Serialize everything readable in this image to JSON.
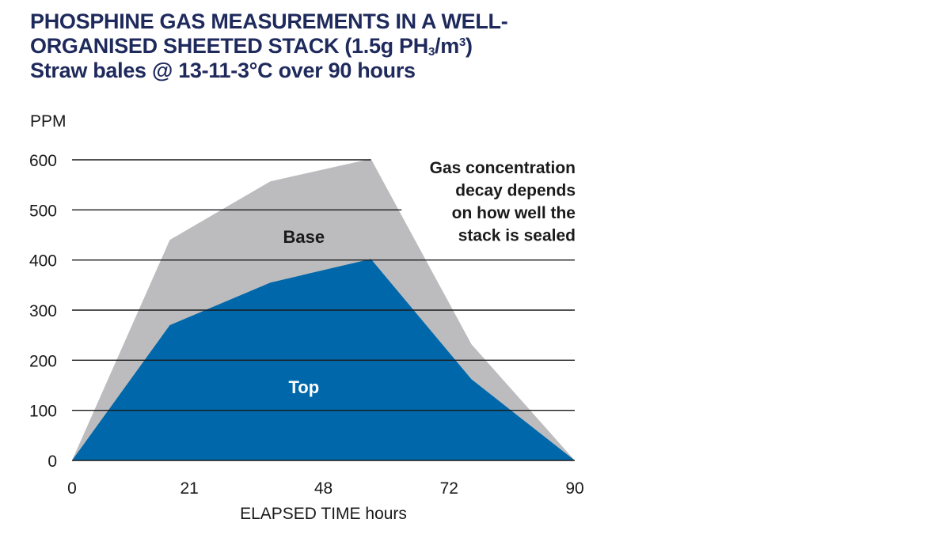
{
  "title": {
    "line1": "PHOSPHINE GAS MEASUREMENTS IN A WELL-",
    "line2_a": "ORGANISED SHEETED STACK (1.5g PH",
    "line2_sub": "3",
    "line2_b": "/m",
    "line2_sup": "3",
    "line2_c": ")",
    "line3": "Straw bales @ 13-11-3°C over 90 hours"
  },
  "colors": {
    "title": "#1f2a5c",
    "base_series": "#bcbcbf",
    "top_series": "#0068aa",
    "gridline": "#1a1a1a",
    "text": "#1a1a1a"
  },
  "chart_data": {
    "type": "area",
    "title": "PHOSPHINE GAS MEASUREMENTS IN A WELL-ORGANISED SHEETED STACK (1.5g PH3/m3) Straw bales @ 13-11-3°C over 90 hours",
    "ylabel": "PPM",
    "xlabel": "ELAPSED TIME hours",
    "xlim": [
      0,
      90
    ],
    "ylim": [
      0,
      600
    ],
    "x_ticks": [
      0,
      21,
      48,
      72,
      90
    ],
    "x_tick_positions": [
      0,
      21,
      45,
      67.5,
      90
    ],
    "y_ticks": [
      0,
      100,
      200,
      300,
      400,
      500,
      600
    ],
    "grid": true,
    "series": [
      {
        "name": "Base",
        "x": [
          0,
          17.5,
          35.5,
          53.5,
          71.5,
          90
        ],
        "values": [
          0,
          440,
          557,
          602,
          232,
          0
        ]
      },
      {
        "name": "Top",
        "x": [
          0,
          17.5,
          35.5,
          53.5,
          71.5,
          90
        ],
        "values": [
          0,
          270,
          355,
          402,
          162,
          0
        ]
      }
    ],
    "annotations": [
      "Gas concentration",
      "decay depends",
      "on how well the",
      "stack is sealed"
    ]
  }
}
